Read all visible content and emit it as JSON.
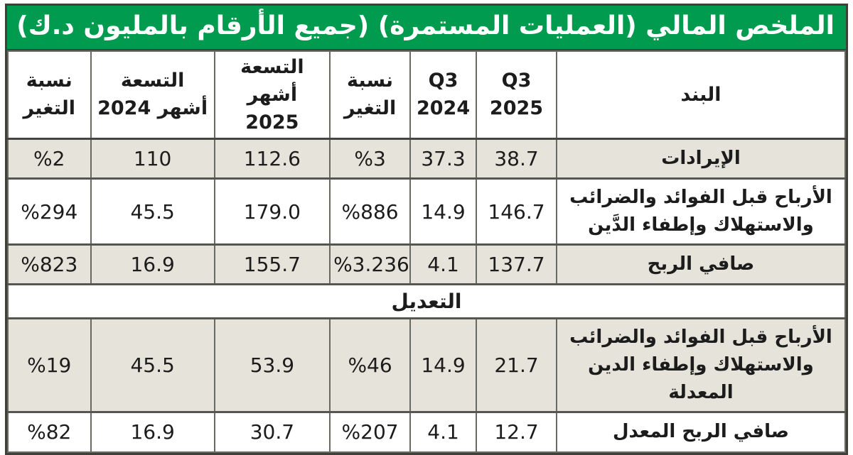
{
  "title": "الملخص المالي (العمليات المستمرة) (جميع الأرقام بالمليون د.ك)",
  "colors": {
    "header_green": "#009b4e",
    "shaded_row": "#e6e4da",
    "grid_border": "#696a62",
    "title_text": "#ffffff"
  },
  "table": {
    "columns": [
      {
        "key": "item",
        "label": "البند"
      },
      {
        "key": "q3_2025",
        "label": "Q3\n2025"
      },
      {
        "key": "q3_2024",
        "label": "Q3\n2024"
      },
      {
        "key": "chg_q",
        "label": "نسبة\nالتغير"
      },
      {
        "key": "nm_2025",
        "label": "التسعة\nأشهر 2025"
      },
      {
        "key": "nm_2024",
        "label": "التسعة\nأشهر 2024"
      },
      {
        "key": "chg_nm",
        "label": "نسبة\nالتغير"
      }
    ],
    "rows": [
      {
        "shaded": true,
        "item": "الإيرادات",
        "q3_2025": "38.7",
        "q3_2024": "37.3",
        "chg_q": "%3",
        "nm_2025": "112.6",
        "nm_2024": "110",
        "chg_nm": "%2"
      },
      {
        "shaded": false,
        "item": "الأرباح قبل الفوائد والضرائب والاستهلاك وإطفاء الدَّين",
        "q3_2025": "146.7",
        "q3_2024": "14.9",
        "chg_q": "%886",
        "nm_2025": "179.0",
        "nm_2024": "45.5",
        "chg_nm": "%294"
      },
      {
        "shaded": true,
        "item": "صافي الربح",
        "q3_2025": "137.7",
        "q3_2024": "4.1",
        "chg_q": "%3.236",
        "nm_2025": "155.7",
        "nm_2024": "16.9",
        "chg_nm": "%823"
      },
      {
        "section": "التعديل"
      },
      {
        "shaded": true,
        "item": "الأرباح قبل الفوائد والضرائب والاستهلاك وإطفاء الدين المعدلة",
        "q3_2025": "21.7",
        "q3_2024": "14.9",
        "chg_q": "%46",
        "nm_2025": "53.9",
        "nm_2024": "45.5",
        "chg_nm": "%19"
      },
      {
        "shaded": false,
        "item": "صافي الربح المعدل",
        "q3_2025": "12.7",
        "q3_2024": "4.1",
        "chg_q": "%207",
        "nm_2025": "30.7",
        "nm_2024": "16.9",
        "chg_nm": "%82"
      }
    ]
  }
}
